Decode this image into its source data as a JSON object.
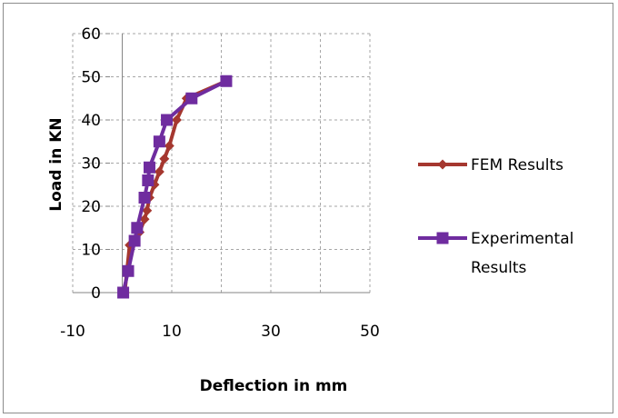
{
  "chart_data": {
    "type": "line",
    "title": "",
    "xlabel": "Deflection in mm",
    "ylabel": "Load in KN",
    "xlim": [
      -10,
      50
    ],
    "ylim": [
      0,
      60
    ],
    "x_ticks": [
      -10,
      10,
      30,
      50
    ],
    "y_ticks": [
      0,
      10,
      20,
      30,
      40,
      50,
      60
    ],
    "grid": true,
    "legend_position": "right",
    "series": [
      {
        "name": "FEM Results",
        "color": "#A5372F",
        "marker": "diamond",
        "x": [
          0.5,
          1.5,
          2.5,
          3.5,
          4.5,
          5.0,
          5.5,
          6.5,
          7.5,
          8.5,
          9.5,
          11.0,
          13.0,
          21.0
        ],
        "y": [
          0,
          11,
          12,
          14,
          17,
          19,
          22,
          25,
          28,
          31,
          34,
          40,
          45,
          49
        ]
      },
      {
        "name": "Experimental Results",
        "color": "#6F2C9F",
        "marker": "square",
        "x": [
          0.2,
          1.2,
          2.5,
          3.0,
          4.5,
          5.2,
          5.5,
          7.5,
          9.0,
          14.0,
          21.0
        ],
        "y": [
          0,
          5,
          12,
          15,
          22,
          26,
          29,
          35,
          40,
          45,
          49
        ]
      }
    ]
  }
}
